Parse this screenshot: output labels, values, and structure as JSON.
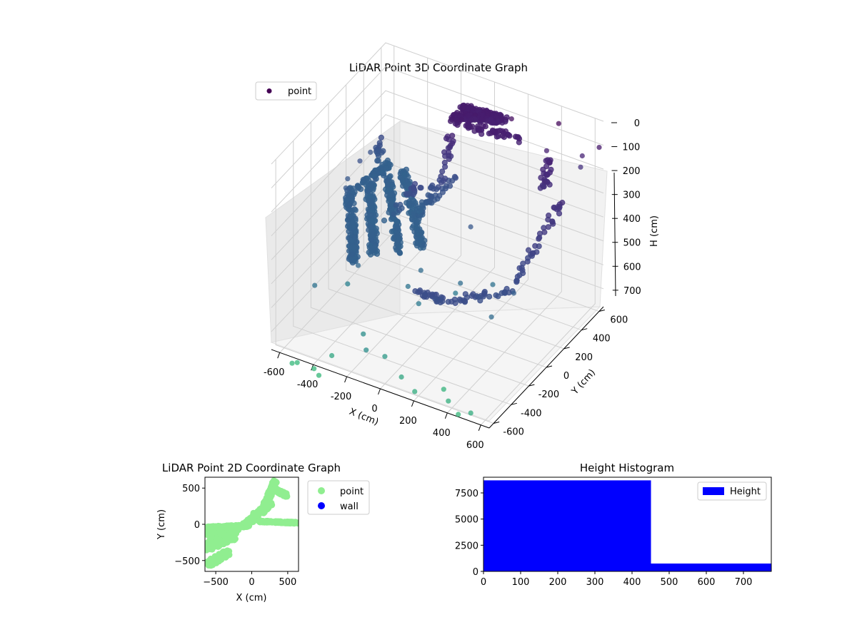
{
  "chart_data": [
    {
      "type": "scatter",
      "projection": "3d",
      "title": "LiDAR Point 3D Coordinate Graph",
      "xlabel": "X (cm)",
      "ylabel": "Y (cm)",
      "zlabel": "H (cm)",
      "xticks": [
        -600,
        -400,
        -200,
        0,
        200,
        400,
        600
      ],
      "yticks": [
        -600,
        -400,
        -200,
        0,
        200,
        400,
        600
      ],
      "zticks": [
        0,
        100,
        200,
        300,
        400,
        500,
        600,
        700
      ],
      "xlim": [
        -650,
        650
      ],
      "ylim": [
        -650,
        650
      ],
      "zlim": [
        0,
        775
      ],
      "z_inverted": true,
      "grid": true,
      "legend": {
        "position": "top-left",
        "entries": [
          "point"
        ]
      },
      "colors": {
        "point": "#440154"
      },
      "series": [
        {
          "name": "point",
          "clusters": [
            {
              "from": [
                -600,
                150,
                420
              ],
              "to": [
                -560,
                520,
                430
              ],
              "n": 70
            },
            {
              "from": [
                -600,
                150,
                420
              ],
              "to": [
                -300,
                -380,
                430
              ],
              "n": 150
            },
            {
              "from": [
                -560,
                300,
                430
              ],
              "to": [
                -250,
                -250,
                430
              ],
              "n": 140
            },
            {
              "from": [
                -520,
                420,
                430
              ],
              "to": [
                -150,
                -150,
                430
              ],
              "n": 130
            },
            {
              "from": [
                -470,
                500,
                430
              ],
              "to": [
                -60,
                -60,
                430
              ],
              "n": 120
            },
            {
              "from": [
                -600,
                460,
                420
              ],
              "to": [
                -600,
                500,
                330
              ],
              "n": 15
            },
            {
              "from": [
                -200,
                150,
                420
              ],
              "to": [
                -100,
                450,
                320
              ],
              "n": 25
            },
            {
              "from": [
                -330,
                50,
                430
              ],
              "to": [
                -220,
                200,
                310
              ],
              "n": 20
            },
            {
              "from": [
                -150,
                560,
                110
              ],
              "to": [
                80,
                610,
                120
              ],
              "n": 130
            },
            {
              "from": [
                -150,
                470,
                110
              ],
              "to": [
                60,
                590,
                120
              ],
              "n": 120
            },
            {
              "from": [
                -130,
                420,
                110
              ],
              "to": [
                250,
                520,
                130
              ],
              "n": 50
            },
            {
              "from": [
                -130,
                430,
                110
              ],
              "to": [
                -120,
                280,
                300
              ],
              "n": 25
            },
            {
              "from": [
                -240,
                250,
                430
              ],
              "to": [
                -120,
                280,
                300
              ],
              "n": 20
            },
            {
              "from": [
                600,
                250,
                200
              ],
              "to": [
                600,
                -300,
                340
              ],
              "n": 40
            },
            {
              "from": [
                600,
                -330,
                340
              ],
              "to": [
                400,
                -600,
                330
              ],
              "n": 30
            },
            {
              "from": [
                400,
                -600,
                330
              ],
              "to": [
                180,
                -620,
                330
              ],
              "n": 30
            },
            {
              "from": [
                420,
                450,
                140
              ],
              "to": [
                470,
                330,
                200
              ],
              "n": 25
            }
          ],
          "outliers": [
            [
              -620,
              300,
              350
            ],
            [
              -630,
              180,
              380
            ],
            [
              -610,
              120,
              390
            ],
            [
              -620,
              420,
              360
            ],
            [
              -530,
              300,
              405
            ],
            [
              -300,
              -330,
              460
            ],
            [
              -410,
              -240,
              600
            ],
            [
              -180,
              -500,
              650
            ],
            [
              -100,
              -620,
              650
            ],
            [
              -20,
              -560,
              680
            ],
            [
              100,
              -600,
              720
            ],
            [
              200,
              -640,
              740
            ],
            [
              300,
              -500,
              760
            ],
            [
              380,
              -600,
              750
            ],
            [
              460,
              -640,
              770
            ],
            [
              540,
              -650,
              740
            ],
            [
              -300,
              -630,
              720
            ],
            [
              -500,
              -700,
              775
            ],
            [
              -480,
              -680,
              775
            ],
            [
              -380,
              -680,
              775
            ],
            [
              -330,
              -720,
              775
            ],
            [
              30,
              -270,
              560
            ],
            [
              -60,
              -220,
              530
            ],
            [
              -20,
              -150,
              480
            ],
            [
              150,
              -80,
              560
            ],
            [
              200,
              -120,
              490
            ],
            [
              120,
              150,
              380
            ],
            [
              320,
              20,
              520
            ],
            [
              490,
              -320,
              480
            ],
            [
              550,
              -180,
              420
            ],
            [
              -470,
              -500,
              520
            ],
            [
              180,
              500,
              50
            ],
            [
              430,
              560,
              30
            ],
            [
              540,
              600,
              200
            ],
            [
              640,
              620,
              100
            ],
            [
              400,
              480,
              120
            ],
            [
              560,
              580,
              140
            ]
          ]
        }
      ]
    },
    {
      "type": "scatter",
      "title": "LiDAR Point 2D Coordinate Graph",
      "xlabel": "X (cm)",
      "ylabel": "Y (cm)",
      "xlim": [
        -650,
        650
      ],
      "ylim": [
        -650,
        650
      ],
      "xticks": [
        -500,
        0,
        500
      ],
      "yticks": [
        -500,
        0,
        500
      ],
      "legend": {
        "position": "outside-right",
        "entries": [
          "point",
          "wall"
        ]
      },
      "colors": {
        "point": "#90ee90",
        "wall": "#0000ff"
      },
      "series": [
        {
          "name": "point",
          "clusters": [
            {
              "from": [
                -650,
                -50
              ],
              "to": [
                -50,
                -20
              ],
              "spread": 35
            },
            {
              "from": [
                -640,
                -120
              ],
              "to": [
                -200,
                -60
              ],
              "spread": 80
            },
            {
              "from": [
                -620,
                -300
              ],
              "to": [
                -250,
                -150
              ],
              "spread": 120
            },
            {
              "from": [
                -600,
                -550
              ],
              "to": [
                -320,
                -380
              ],
              "spread": 70
            },
            {
              "from": [
                -100,
                -20
              ],
              "to": [
                250,
                300
              ],
              "spread": 70
            },
            {
              "from": [
                150,
                180
              ],
              "to": [
                330,
                600
              ],
              "spread": 50
            },
            {
              "from": [
                320,
                480
              ],
              "to": [
                480,
                400
              ],
              "spread": 40
            },
            {
              "from": [
                100,
                40
              ],
              "to": [
                650,
                20
              ],
              "spread": 20
            }
          ]
        },
        {
          "name": "wall",
          "clusters": []
        }
      ]
    },
    {
      "type": "bar",
      "title": "Height Histogram",
      "xlim": [
        0,
        775
      ],
      "ylim": [
        0,
        9000
      ],
      "xticks": [
        0,
        100,
        200,
        300,
        400,
        500,
        600,
        700
      ],
      "yticks": [
        0,
        2500,
        5000,
        7500
      ],
      "legend": {
        "position": "top-right",
        "entries": [
          "Height"
        ]
      },
      "colors": {
        "Height": "#0000ff"
      },
      "series": [
        {
          "name": "Height",
          "bins": [
            {
              "from": 0,
              "to": 451,
              "count": 8700
            },
            {
              "from": 451,
              "to": 775,
              "count": 750
            }
          ]
        }
      ]
    }
  ]
}
